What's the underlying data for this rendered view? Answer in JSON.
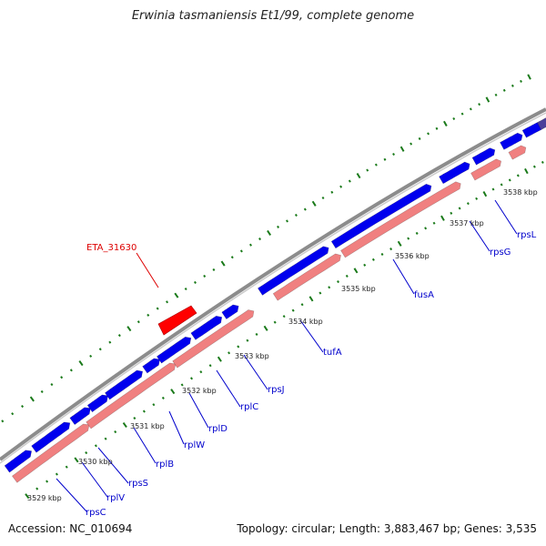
{
  "title": "Erwinia tasmaniensis Et1/99, complete genome",
  "accession": "Accession: NC_010694",
  "summary": "Topology: circular; Length: 3,883,467 bp; Genes: 3,535",
  "highlight": {
    "label": "ETA_31630",
    "color": "#ff0000"
  },
  "colors": {
    "strand_plus": "#0000ee",
    "strand_minus": "#f08080",
    "backbone": "#8c8c8c",
    "operon": "#4b3f9a",
    "ticks": "#1a7a1a"
  },
  "positions": [
    {
      "label": "3529 kbp"
    },
    {
      "label": "3530 kbp"
    },
    {
      "label": "3531 kbp"
    },
    {
      "label": "3532 kbp"
    },
    {
      "label": "3533 kbp"
    },
    {
      "label": "3534 kbp"
    },
    {
      "label": "3535 kbp"
    },
    {
      "label": "3536 kbp"
    },
    {
      "label": "3537 kbp"
    },
    {
      "label": "3538 kbp"
    }
  ],
  "genes": [
    {
      "label": "rpsC"
    },
    {
      "label": "rplV"
    },
    {
      "label": "rpsS"
    },
    {
      "label": "rplB"
    },
    {
      "label": "rplW"
    },
    {
      "label": "rplD"
    },
    {
      "label": "rplC"
    },
    {
      "label": "rpsJ"
    },
    {
      "label": "tufA"
    },
    {
      "label": "fusA"
    },
    {
      "label": "rpsG"
    },
    {
      "label": "rpsL"
    }
  ]
}
